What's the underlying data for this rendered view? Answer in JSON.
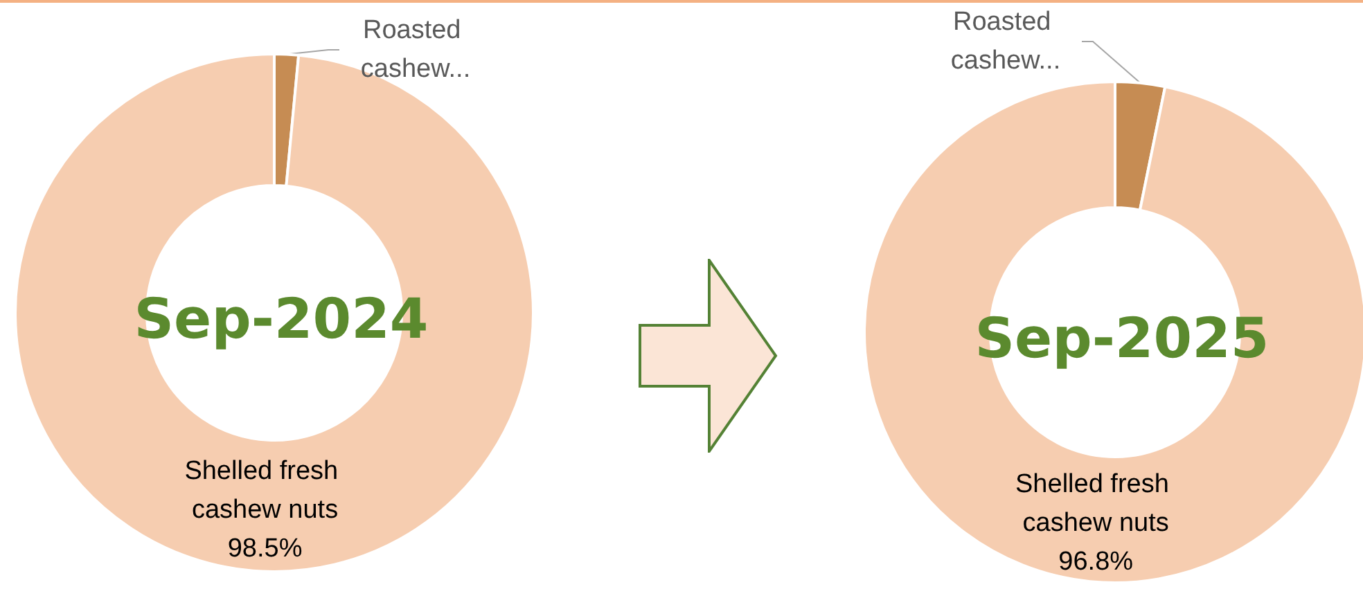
{
  "chart_data": [
    {
      "type": "donut",
      "title": "Sep-2024",
      "categories": [
        "Roasted cashew...",
        "Shelled fresh cashew nuts"
      ],
      "values": [
        1.5,
        98.5
      ],
      "colors": [
        "#c68c53",
        "#f6cdb0"
      ],
      "value_labels": [
        null,
        "98.5%"
      ],
      "legend": false
    },
    {
      "type": "donut",
      "title": "Sep-2025",
      "categories": [
        "Roasted cashew...",
        "Shelled fresh cashew nuts"
      ],
      "values": [
        3.2,
        96.8
      ],
      "colors": [
        "#c68c53",
        "#f6cdb0"
      ],
      "value_labels": [
        null,
        "96.8%"
      ],
      "legend": false
    }
  ]
}
